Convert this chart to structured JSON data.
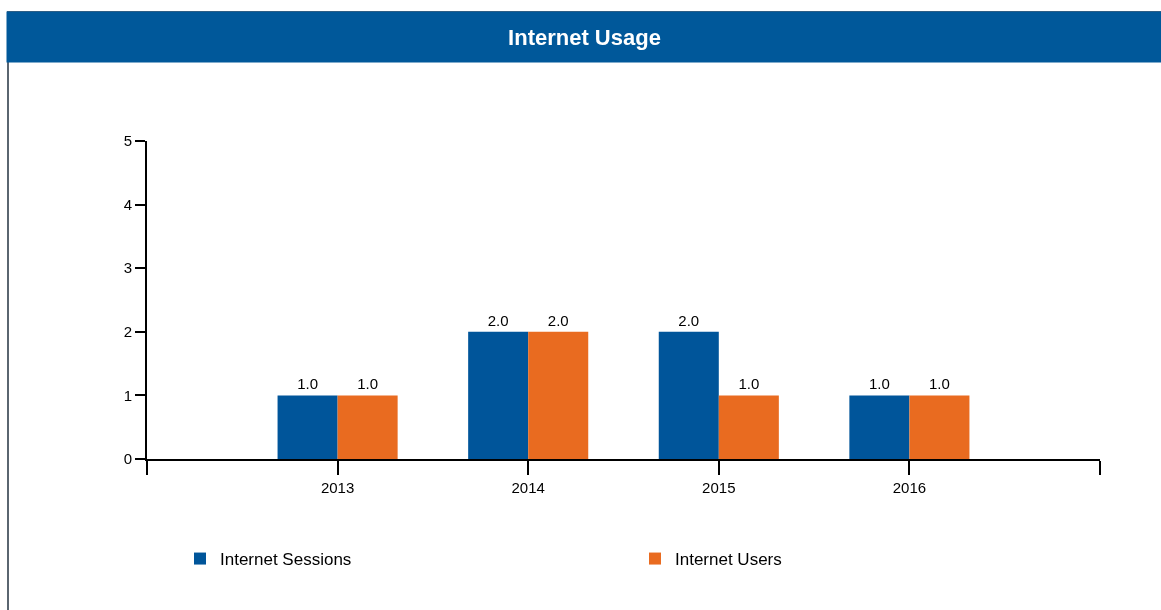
{
  "chart_data": {
    "type": "bar",
    "title": "Internet Usage",
    "categories": [
      "2013",
      "2014",
      "2015",
      "2016"
    ],
    "series": [
      {
        "name": "Internet Sessions",
        "color": "#00559a",
        "values": [
          1,
          2,
          2,
          1
        ],
        "value_labels": [
          "1.0",
          "2.0",
          "2.0",
          "1.0"
        ]
      },
      {
        "name": "Internet Users",
        "color": "#e96b20",
        "values": [
          1,
          2,
          1,
          1
        ],
        "value_labels": [
          "1.0",
          "2.0",
          "1.0",
          "1.0"
        ]
      }
    ],
    "ylim": [
      0,
      5
    ],
    "yticks": [
      0,
      1,
      2,
      3,
      4,
      5
    ],
    "grid": false,
    "legend": "bottom"
  }
}
